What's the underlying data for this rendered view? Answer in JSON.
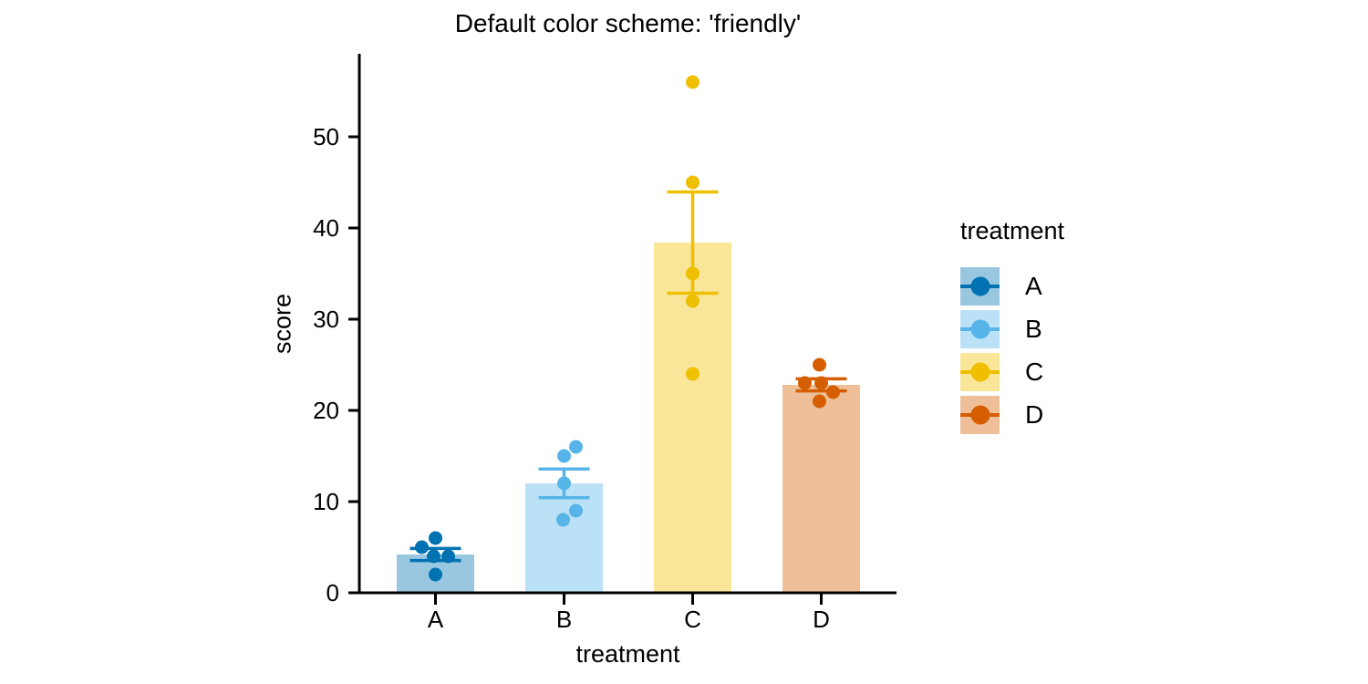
{
  "chart_data": {
    "type": "bar",
    "title": "Default color scheme: 'friendly'",
    "xlabel": "treatment",
    "ylabel": "score",
    "categories": [
      "A",
      "B",
      "C",
      "D"
    ],
    "yticks": [
      0,
      10,
      20,
      30,
      40,
      50
    ],
    "ylim": [
      0,
      59
    ],
    "grid": false,
    "bar_alpha": 0.4,
    "error_bar": "sem",
    "legend": {
      "title": "treatment",
      "position": "right",
      "entries": [
        "A",
        "B",
        "C",
        "D"
      ]
    },
    "series": [
      {
        "name": "A",
        "color": "#0072B2",
        "mean": 4.2,
        "sem": 0.66,
        "points": [
          {
            "v": 6,
            "dx": 0
          },
          {
            "v": 5,
            "dx": -15
          },
          {
            "v": 4,
            "dx": -2
          },
          {
            "v": 4,
            "dx": 14
          },
          {
            "v": 2,
            "dx": 0
          }
        ]
      },
      {
        "name": "B",
        "color": "#56B4E9",
        "mean": 12,
        "sem": 1.58,
        "points": [
          {
            "v": 16,
            "dx": 13
          },
          {
            "v": 15,
            "dx": 0
          },
          {
            "v": 12,
            "dx": 0
          },
          {
            "v": 9,
            "dx": 13
          },
          {
            "v": 8,
            "dx": -1
          }
        ]
      },
      {
        "name": "C",
        "color": "#EFC000",
        "mean": 38.4,
        "sem": 5.55,
        "points": [
          {
            "v": 56,
            "dx": 0
          },
          {
            "v": 45,
            "dx": 0
          },
          {
            "v": 35,
            "dx": 0
          },
          {
            "v": 32,
            "dx": 0
          },
          {
            "v": 24,
            "dx": 0
          }
        ]
      },
      {
        "name": "D",
        "color": "#D55E00",
        "mean": 22.8,
        "sem": 0.66,
        "points": [
          {
            "v": 25,
            "dx": -2
          },
          {
            "v": 23,
            "dx": -18
          },
          {
            "v": 23,
            "dx": 0
          },
          {
            "v": 22,
            "dx": 13
          },
          {
            "v": 21,
            "dx": -2
          }
        ]
      }
    ]
  }
}
